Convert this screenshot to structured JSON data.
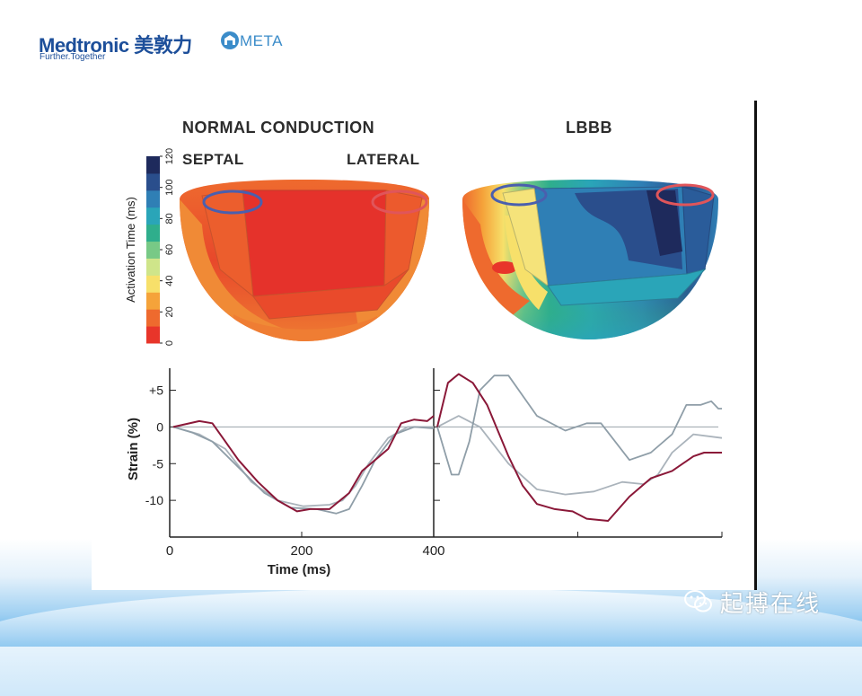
{
  "header": {
    "logo_text": "Medtronic 美敦力",
    "tagline": "Further.Together",
    "partner_logo": "META"
  },
  "watermark": {
    "text": "起搏在线",
    "icon": "wechat-icon"
  },
  "figure": {
    "title_left": "NORMAL CONDUCTION",
    "title_right": "LBBB",
    "label_septal": "SEPTAL",
    "label_lateral": "LATERAL"
  },
  "colors": {
    "septal_marker": "#4a5fae",
    "lateral_marker": "#e0555a",
    "lateral_strain": "#8a1838",
    "septal_strain": "#8f9ea8",
    "other_strain": "#aab3bb"
  },
  "chart_data": [
    {
      "type": "heatmap",
      "colorbar": {
        "label": "Activation Time (ms)",
        "ticks": [
          0,
          20,
          40,
          60,
          80,
          100,
          120
        ],
        "range": [
          0,
          120
        ],
        "colors": [
          "#e8352a",
          "#ee6a2e",
          "#f5a33a",
          "#f7e06a",
          "#cfe58a",
          "#78c986",
          "#2fae8c",
          "#2aa5b8",
          "#2f7fb5",
          "#2a4e8c",
          "#1e2a5c"
        ]
      },
      "panels": [
        {
          "name": "NORMAL CONDUCTION",
          "max_activation_ms": 30
        },
        {
          "name": "LBBB",
          "max_activation_ms": 120
        }
      ]
    },
    {
      "type": "line",
      "ylabel": "Strain (%)",
      "xlabel": "Time (ms)",
      "y_ticks": [
        "+5",
        "0",
        "-5",
        "-10"
      ],
      "y_tick_values": [
        5,
        0,
        -5,
        -10
      ],
      "x_ticks": [
        "0",
        "200",
        "400"
      ],
      "x_tick_values": [
        0,
        200,
        400
      ],
      "ylim": [
        -15,
        8
      ],
      "panels": [
        {
          "name": "NORMAL CONDUCTION",
          "xlim": [
            0,
            400
          ],
          "series": [
            {
              "key": "lateral",
              "x": [
                0,
                40,
                60,
                80,
                100,
                130,
                160,
                190,
                210,
                240,
                270,
                290,
                310,
                330,
                350,
                370,
                390,
                400
              ],
              "y": [
                0,
                0.8,
                0.5,
                -2,
                -4.5,
                -7.5,
                -10,
                -11.5,
                -11.2,
                -11.2,
                -9,
                -6,
                -4.5,
                -3,
                0.5,
                1,
                0.8,
                1.5
              ]
            },
            {
              "key": "septal",
              "x": [
                0,
                30,
                60,
                100,
                140,
                180,
                220,
                250,
                270,
                290,
                310,
                340,
                370,
                400
              ],
              "y": [
                0,
                -0.8,
                -2,
                -5.5,
                -9,
                -11,
                -11.2,
                -11.8,
                -11.2,
                -8,
                -4.5,
                -1,
                0,
                -0.2
              ]
            },
            {
              "key": "other",
              "x": [
                0,
                40,
                80,
                120,
                160,
                200,
                240,
                260,
                280,
                300,
                330,
                360,
                400
              ],
              "y": [
                0,
                -1,
                -3,
                -7.5,
                -10,
                -10.8,
                -10.6,
                -10,
                -8,
                -5,
                -1.5,
                0,
                0
              ]
            }
          ]
        },
        {
          "name": "LBBB",
          "xlim": [
            0,
            400
          ],
          "series": [
            {
              "key": "lateral",
              "x": [
                0,
                15,
                30,
                50,
                70,
                100,
                120,
                140,
                165,
                190,
                210,
                240,
                270,
                300,
                330,
                360,
                375,
                400
              ],
              "y": [
                0,
                6,
                7.2,
                6,
                3,
                -4,
                -8,
                -10.5,
                -11.2,
                -11.5,
                -12.5,
                -12.8,
                -9.5,
                -7,
                -6,
                -4,
                -3.5,
                -3.5
              ]
            },
            {
              "key": "septal",
              "x": [
                0,
                20,
                30,
                45,
                60,
                80,
                100,
                140,
                180,
                210,
                230,
                250,
                270,
                300,
                330,
                350,
                370,
                385,
                395,
                400
              ],
              "y": [
                0,
                -6.5,
                -6.5,
                -2,
                5,
                7,
                7,
                1.5,
                -0.5,
                0.5,
                0.5,
                -2,
                -4.5,
                -3.5,
                -1,
                3,
                3,
                3.5,
                2.5,
                2.5
              ]
            },
            {
              "key": "other",
              "x": [
                0,
                30,
                60,
                100,
                140,
                180,
                220,
                260,
                290,
                310,
                330,
                360,
                400
              ],
              "y": [
                0,
                1.5,
                0,
                -5,
                -8.5,
                -9.2,
                -8.8,
                -7.5,
                -7.8,
                -6.5,
                -3.5,
                -1,
                -1.5
              ]
            }
          ]
        }
      ]
    }
  ]
}
